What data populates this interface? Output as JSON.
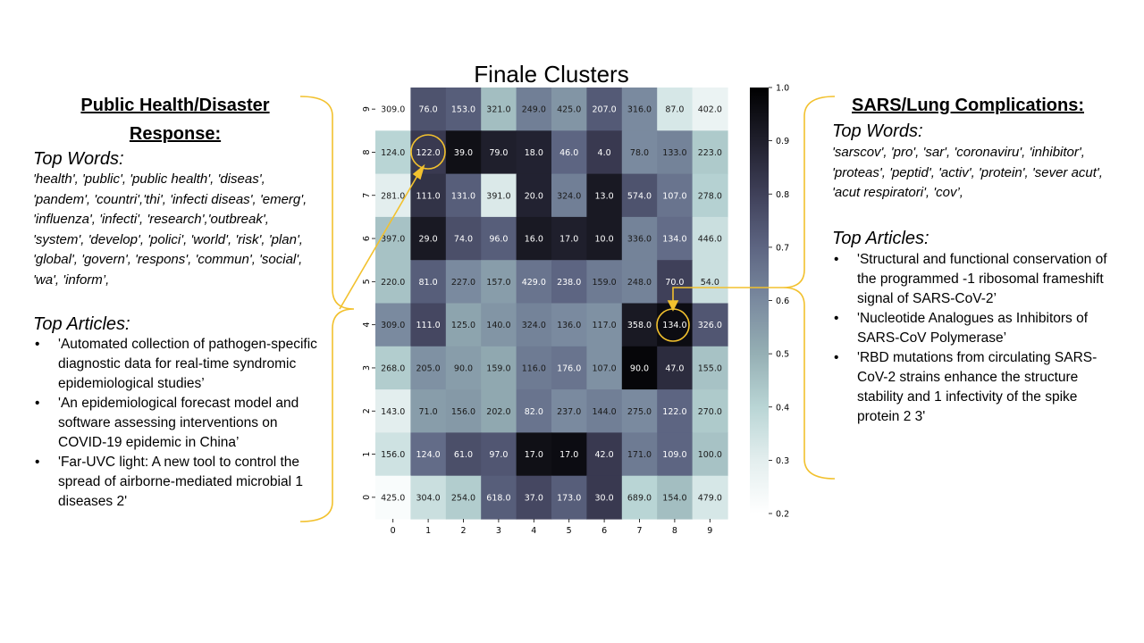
{
  "left_panel": {
    "title": "Public Health/Disaster Response:",
    "top_words_label": "Top Words:",
    "top_words": "'health', 'public', 'public health', 'diseas', 'pandem', 'countri','thi', 'infecti diseas', 'emerg', 'influenza', 'infecti', 'research','outbreak', 'system', 'develop', 'polici', 'world', 'risk', 'plan', 'global', 'govern', 'respons', 'commun', 'social', 'wa', 'inform’,",
    "top_articles_label": "Top Articles:",
    "articles": [
      "'Automated collection of pathogen-specific diagnostic data for real-time syndromic epidemiological studies’",
      "'An epidemiological forecast model and software assessing interventions on COVID-19 epidemic in China’",
      "'Far-UVC light: A new tool to control the spread of airborne-mediated microbial 1 diseases 2'"
    ]
  },
  "right_panel": {
    "title": "SARS/Lung Complications:",
    "top_words_label": "Top Words:",
    "top_words": "'sarscov', 'pro', 'sar', 'coronaviru', 'inhibitor', 'proteas', 'peptid', 'activ', 'protein', 'sever acut', 'acut respiratori', 'cov’,",
    "top_articles_label": "Top Articles:",
    "articles": [
      "'Structural and functional conservation of the programmed -1 ribosomal frameshift signal of SARS-CoV-2’",
      "'Nucleotide Analogues as Inhibitors of SARS-CoV Polymerase’",
      "'RBD mutations from circulating SARS-CoV-2 strains enhance the structure stability and 1 infectivity of the spike protein 2 3'"
    ]
  },
  "chart_data": {
    "type": "heatmap",
    "title": "Finale Clusters",
    "x_ticks": [
      "0",
      "1",
      "2",
      "3",
      "4",
      "5",
      "6",
      "7",
      "8",
      "9"
    ],
    "y_ticks_top_to_bottom": [
      "9",
      "8",
      "7",
      "6",
      "5",
      "4",
      "3",
      "2",
      "1",
      "0"
    ],
    "colormap": "bone_r",
    "colorbar_range": [
      0.2,
      1.0
    ],
    "colorbar_ticks": [
      "1.0",
      "0.9",
      "0.8",
      "0.7",
      "0.6",
      "0.5",
      "0.4",
      "0.3",
      "0.2"
    ],
    "cell_labels": [
      [
        "309.0",
        "76.0",
        "153.0",
        "321.0",
        "249.0",
        "425.0",
        "207.0",
        "316.0",
        "87.0",
        "402.0"
      ],
      [
        "124.0",
        "122.0",
        "39.0",
        "79.0",
        "18.0",
        "46.0",
        "4.0",
        "78.0",
        "133.0",
        "223.0"
      ],
      [
        "281.0",
        "111.0",
        "131.0",
        "391.0",
        "20.0",
        "324.0",
        "13.0",
        "574.0",
        "107.0",
        "278.0"
      ],
      [
        "397.0",
        "29.0",
        "74.0",
        "96.0",
        "16.0",
        "17.0",
        "10.0",
        "336.0",
        "134.0",
        "446.0"
      ],
      [
        "220.0",
        "81.0",
        "227.0",
        "157.0",
        "429.0",
        "238.0",
        "159.0",
        "248.0",
        "70.0",
        "54.0"
      ],
      [
        "309.0",
        "111.0",
        "125.0",
        "140.0",
        "324.0",
        "136.0",
        "117.0",
        "358.0",
        "134.0",
        "326.0"
      ],
      [
        "268.0",
        "205.0",
        "90.0",
        "159.0",
        "116.0",
        "176.0",
        "107.0",
        "90.0",
        "47.0",
        "155.0"
      ],
      [
        "143.0",
        "71.0",
        "156.0",
        "202.0",
        "82.0",
        "237.0",
        "144.0",
        "275.0",
        "122.0",
        "270.0"
      ],
      [
        "156.0",
        "124.0",
        "61.0",
        "97.0",
        "17.0",
        "17.0",
        "42.0",
        "171.0",
        "109.0",
        "100.0"
      ],
      [
        "425.0",
        "304.0",
        "254.0",
        "618.0",
        "37.0",
        "173.0",
        "30.0",
        "689.0",
        "154.0",
        "479.0"
      ]
    ],
    "cell_values": [
      [
        0.2,
        0.75,
        0.72,
        0.46,
        0.63,
        0.57,
        0.73,
        0.6,
        0.33,
        0.27
      ],
      [
        0.4,
        0.82,
        0.95,
        0.9,
        0.89,
        0.7,
        0.82,
        0.6,
        0.62,
        0.43
      ],
      [
        0.3,
        0.84,
        0.72,
        0.32,
        0.89,
        0.63,
        0.92,
        0.75,
        0.66,
        0.41
      ],
      [
        0.45,
        0.92,
        0.76,
        0.72,
        0.92,
        0.9,
        0.92,
        0.62,
        0.68,
        0.36
      ],
      [
        0.45,
        0.72,
        0.6,
        0.55,
        0.66,
        0.7,
        0.64,
        0.62,
        0.8,
        0.36
      ],
      [
        0.6,
        0.78,
        0.53,
        0.57,
        0.62,
        0.6,
        0.58,
        0.92,
        0.96,
        0.74
      ],
      [
        0.42,
        0.58,
        0.55,
        0.52,
        0.64,
        0.66,
        0.58,
        0.98,
        0.86,
        0.45
      ],
      [
        0.3,
        0.55,
        0.56,
        0.52,
        0.66,
        0.6,
        0.63,
        0.6,
        0.7,
        0.43
      ],
      [
        0.35,
        0.68,
        0.76,
        0.74,
        0.95,
        0.96,
        0.82,
        0.64,
        0.7,
        0.45
      ],
      [
        0.22,
        0.36,
        0.42,
        0.72,
        0.78,
        0.72,
        0.82,
        0.4,
        0.46,
        0.33
      ]
    ],
    "highlighted_cells": [
      {
        "row_label": "8",
        "col_label": "1",
        "value": "122.0"
      },
      {
        "row_label": "4",
        "col_label": "8",
        "value": "134.0"
      }
    ],
    "annotation_color": "#f2c12e"
  }
}
